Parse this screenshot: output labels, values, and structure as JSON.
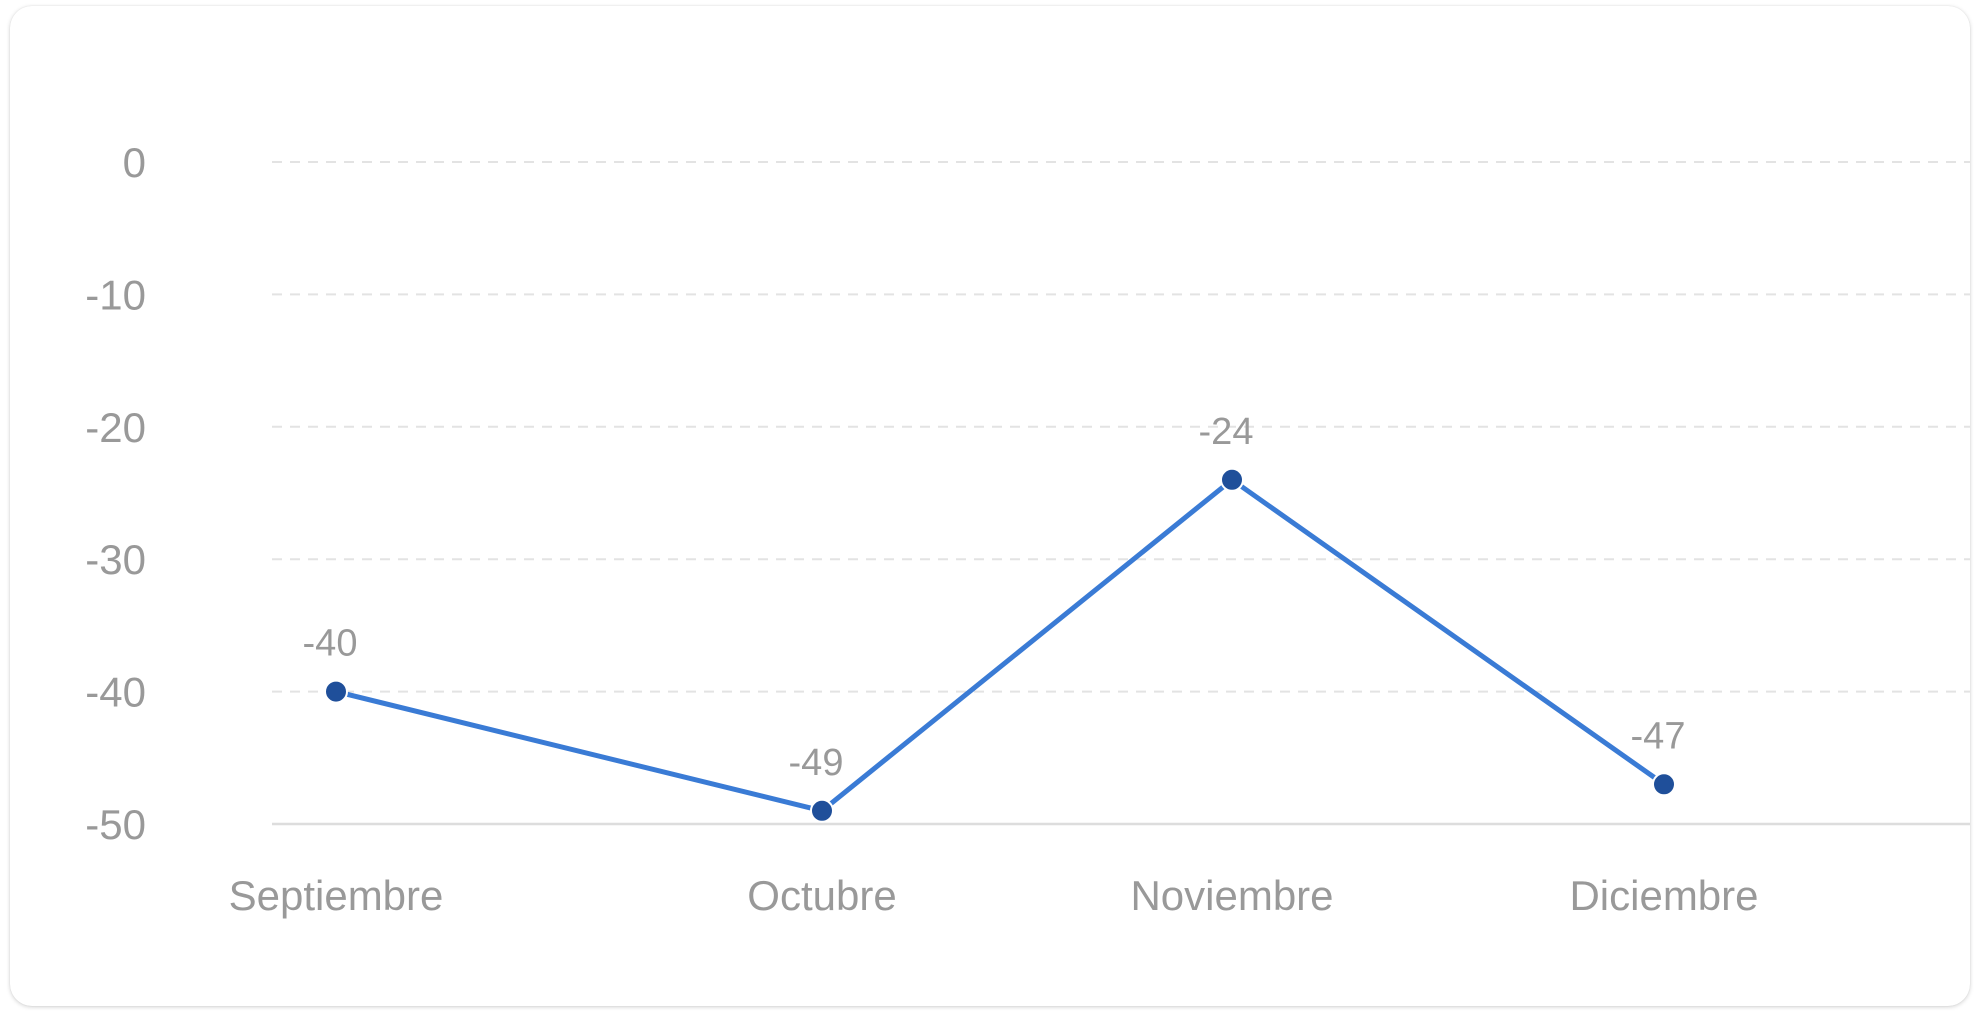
{
  "chart_data": {
    "type": "line",
    "title": "",
    "xlabel": "",
    "ylabel": "",
    "categories": [
      "Septiembre",
      "Octubre",
      "Noviembre",
      "Diciembre"
    ],
    "series": [
      {
        "values": [
          -40,
          -49,
          -24,
          -47
        ],
        "color": "#3a7bd5",
        "point_color": "#1f4f9a"
      }
    ],
    "data_labels": [
      "-40",
      "-49",
      "-24",
      "-47"
    ],
    "ylim": [
      -50,
      0
    ],
    "yticks": [
      0,
      -10,
      -20,
      -30,
      -40,
      -50
    ],
    "ytick_labels": [
      "0",
      "-10",
      "-20",
      "-30",
      "-40",
      "-50"
    ],
    "grid": true,
    "legend": "none"
  }
}
